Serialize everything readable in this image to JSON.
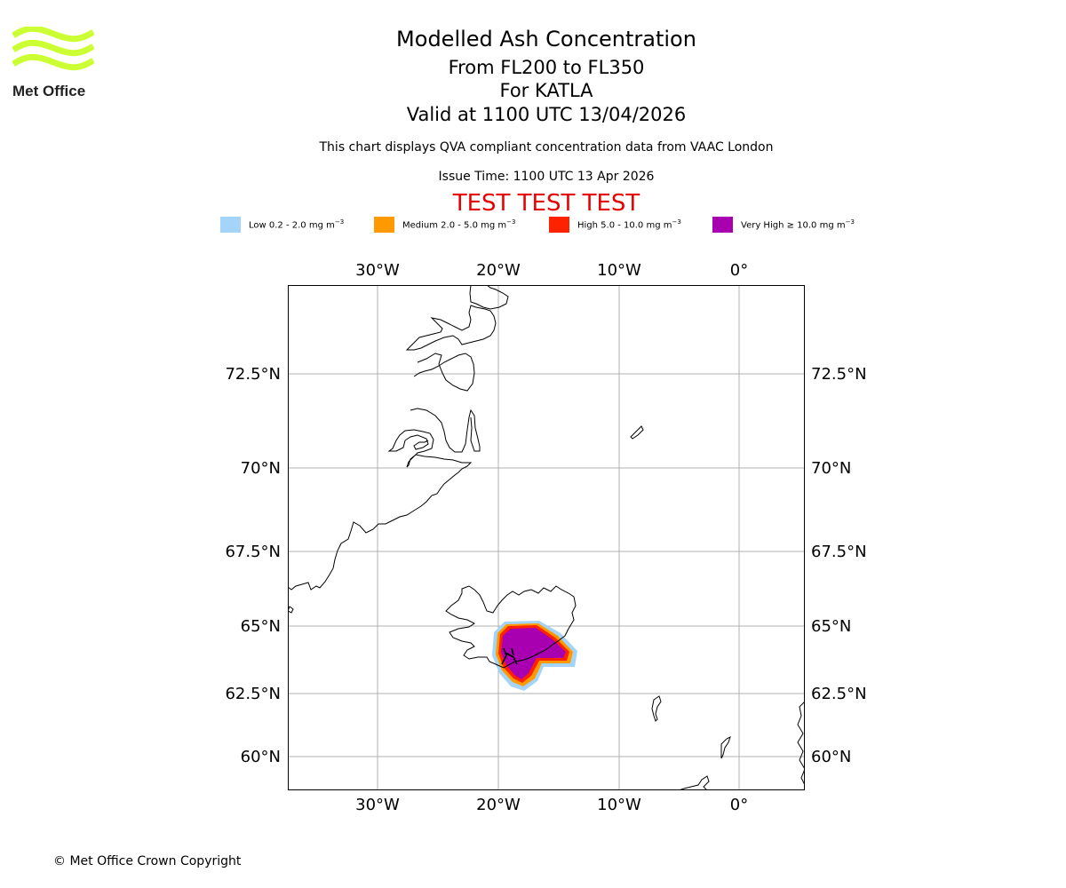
{
  "header": {
    "title": "Modelled Ash Concentration",
    "flight_levels": "From FL200 to FL350",
    "volcano": "For KATLA",
    "validity": "Valid at 1100 UTC 13/04/2026",
    "description": "This chart displays QVA compliant concentration data from VAAC London",
    "issue_time": "Issue Time: 1100 UTC 13 Apr 2026",
    "test_banner": "TEST TEST TEST"
  },
  "logo": {
    "text": "Met Office",
    "icon": "met-office-wave-logo",
    "color": "#ccff33"
  },
  "legend": [
    {
      "label": "Low 0.2 - 2.0 mg m",
      "sup": "−3",
      "color": "#a4d4fa"
    },
    {
      "label": "Medium 2.0 - 5.0 mg m",
      "sup": "−3",
      "color": "#ff9900"
    },
    {
      "label": "High 5.0 - 10.0 mg m",
      "sup": "−3",
      "color": "#ff2200"
    },
    {
      "label": "Very High  ≥  10.0 mg m",
      "sup": "−3",
      "color": "#a800b0"
    }
  ],
  "map": {
    "lon_labels": [
      "30°W",
      "20°W",
      "10°W",
      "0°"
    ],
    "lat_labels": [
      "72.5°N",
      "70°N",
      "67.5°N",
      "65°N",
      "62.5°N",
      "60°N"
    ],
    "lon_values": [
      -30,
      -20,
      -10,
      0
    ],
    "lat_values": [
      72.5,
      70,
      67.5,
      65,
      62.5,
      60
    ],
    "ash_levels": [
      "low",
      "medium",
      "high",
      "very-high"
    ],
    "ash_colors": {
      "low": "#a4d4fa",
      "medium": "#ff9900",
      "high": "#ff2200",
      "very_high": "#a800b0"
    }
  },
  "footer": {
    "copyright": "© Met Office Crown Copyright"
  }
}
